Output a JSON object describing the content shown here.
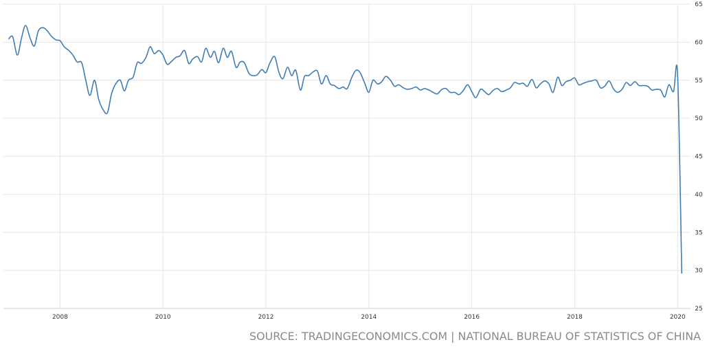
{
  "chart_data": {
    "type": "line",
    "source": "SOURCE: TRADINGECONOMICS.COM | NATIONAL BUREAU OF STATISTICS OF CHINA",
    "x": [
      2007,
      2007.08,
      2007.17,
      2007.25,
      2007.33,
      2007.42,
      2007.5,
      2007.58,
      2007.67,
      2007.75,
      2007.83,
      2007.92,
      2008,
      2008.08,
      2008.17,
      2008.25,
      2008.33,
      2008.42,
      2008.5,
      2008.58,
      2008.67,
      2008.75,
      2008.83,
      2008.92,
      2009,
      2009.08,
      2009.17,
      2009.25,
      2009.33,
      2009.42,
      2009.5,
      2009.58,
      2009.67,
      2009.75,
      2009.83,
      2009.92,
      2010,
      2010.08,
      2010.17,
      2010.25,
      2010.33,
      2010.42,
      2010.5,
      2010.58,
      2010.67,
      2010.75,
      2010.83,
      2010.92,
      2011,
      2011.08,
      2011.17,
      2011.25,
      2011.33,
      2011.42,
      2011.5,
      2011.58,
      2011.67,
      2011.75,
      2011.83,
      2011.92,
      2012,
      2012.08,
      2012.17,
      2012.25,
      2012.33,
      2012.42,
      2012.5,
      2012.58,
      2012.67,
      2012.75,
      2012.83,
      2012.92,
      2013,
      2013.08,
      2013.17,
      2013.25,
      2013.33,
      2013.42,
      2013.5,
      2013.58,
      2013.67,
      2013.75,
      2013.83,
      2013.92,
      2014,
      2014.08,
      2014.17,
      2014.25,
      2014.33,
      2014.42,
      2014.5,
      2014.58,
      2014.67,
      2014.75,
      2014.83,
      2014.92,
      2015,
      2015.08,
      2015.17,
      2015.25,
      2015.33,
      2015.42,
      2015.5,
      2015.58,
      2015.67,
      2015.75,
      2015.83,
      2015.92,
      2016,
      2016.08,
      2016.17,
      2016.25,
      2016.33,
      2016.42,
      2016.5,
      2016.58,
      2016.67,
      2016.75,
      2016.83,
      2016.92,
      2017,
      2017.08,
      2017.17,
      2017.25,
      2017.33,
      2017.42,
      2017.5,
      2017.58,
      2017.67,
      2017.75,
      2017.83,
      2017.92,
      2018,
      2018.08,
      2018.17,
      2018.25,
      2018.33,
      2018.42,
      2018.5,
      2018.58,
      2018.67,
      2018.75,
      2018.83,
      2018.92,
      2019,
      2019.08,
      2019.17,
      2019.25,
      2019.33,
      2019.42,
      2019.5,
      2019.58,
      2019.67,
      2019.75,
      2019.83,
      2019.92,
      2020,
      2020.08
    ],
    "series": [
      {
        "color": "#3f7cb4",
        "values": [
          60.4,
          60.7,
          58.3,
          60.5,
          62.2,
          60.5,
          59.5,
          61.5,
          61.9,
          61.5,
          60.8,
          60.3,
          60.2,
          59.4,
          58.9,
          58.3,
          57.4,
          57.3,
          55.0,
          53.0,
          55.0,
          52.5,
          51.2,
          50.7,
          53.2,
          54.5,
          55.0,
          53.6,
          55.0,
          55.4,
          57.3,
          57.2,
          58.0,
          59.4,
          58.5,
          58.9,
          58.3,
          57.1,
          57.5,
          58.0,
          58.2,
          58.9,
          57.2,
          57.8,
          58.1,
          57.4,
          59.2,
          58.0,
          58.8,
          57.3,
          59.2,
          58.0,
          58.8,
          56.7,
          57.4,
          57.3,
          55.9,
          55.6,
          55.7,
          56.4,
          56.0,
          57.3,
          58.1,
          56.1,
          55.2,
          56.7,
          55.6,
          56.3,
          53.7,
          55.5,
          55.6,
          56.1,
          56.2,
          54.5,
          55.6,
          54.5,
          54.3,
          53.9,
          54.1,
          53.9,
          55.4,
          56.3,
          56.0,
          54.6,
          53.4,
          55.0,
          54.5,
          54.8,
          55.5,
          55.0,
          54.2,
          54.4,
          54.0,
          53.8,
          53.9,
          54.1,
          53.7,
          53.9,
          53.7,
          53.4,
          53.2,
          53.8,
          53.9,
          53.4,
          53.4,
          53.1,
          53.6,
          54.4,
          53.5,
          52.7,
          53.8,
          53.5,
          53.1,
          53.7,
          53.9,
          53.5,
          53.7,
          54.0,
          54.7,
          54.5,
          54.6,
          54.2,
          55.1,
          54.0,
          54.5,
          54.9,
          54.5,
          53.4,
          55.4,
          54.3,
          54.8,
          55.0,
          55.3,
          54.4,
          54.6,
          54.8,
          54.9,
          55.0,
          54.0,
          54.2,
          54.9,
          53.9,
          53.4,
          53.8,
          54.7,
          54.3,
          54.8,
          54.3,
          54.3,
          54.2,
          53.7,
          53.8,
          53.7,
          52.8,
          54.4,
          53.5,
          55.6,
          29.6
        ]
      }
    ],
    "xlim": [
      2006.9,
      2020.25
    ],
    "ylim": [
      25,
      65
    ],
    "xticks": [
      2008,
      2010,
      2012,
      2014,
      2016,
      2018,
      2020
    ],
    "yticks": [
      25,
      30,
      35,
      40,
      45,
      50,
      55,
      60,
      65
    ],
    "grid": true
  }
}
